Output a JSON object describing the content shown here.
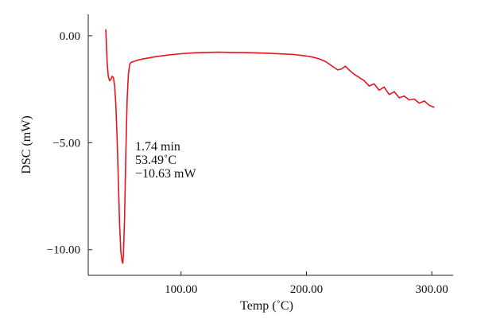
{
  "chart_data": {
    "type": "line",
    "xlabel": "Temp (˚C)",
    "ylabel": "DSC (mW)",
    "xlim": [
      26,
      317
    ],
    "ylim": [
      -11.2,
      1.0
    ],
    "x_ticks": [
      100,
      200,
      300
    ],
    "x_tick_labels": [
      "100.00",
      "200.00",
      "300.00"
    ],
    "y_ticks": [
      0,
      -5,
      -10
    ],
    "y_tick_labels": [
      "0.00",
      "−5.00",
      "−10.00"
    ],
    "grid": false,
    "legend": "none",
    "series": [
      {
        "color": "#e8141b",
        "x": [
          40,
          41,
          42,
          43,
          44,
          45,
          46,
          47,
          48,
          49,
          50,
          51,
          52,
          53,
          53.49,
          54,
          55,
          56,
          57,
          58,
          59,
          60,
          65,
          70,
          80,
          90,
          100,
          110,
          120,
          130,
          140,
          150,
          160,
          170,
          180,
          190,
          200,
          205,
          210,
          215,
          220,
          225,
          228,
          231,
          234,
          238,
          242,
          246,
          250,
          254,
          258,
          262,
          266,
          270,
          274,
          278,
          282,
          286,
          290,
          294,
          298,
          302
        ],
        "y": [
          0.3,
          -1.2,
          -1.9,
          -2.1,
          -2.05,
          -1.9,
          -1.95,
          -2.3,
          -3.2,
          -4.8,
          -6.8,
          -8.8,
          -10.1,
          -10.55,
          -10.63,
          -10.3,
          -8.5,
          -5.5,
          -3.0,
          -1.8,
          -1.35,
          -1.25,
          -1.15,
          -1.08,
          -0.98,
          -0.9,
          -0.84,
          -0.8,
          -0.78,
          -0.77,
          -0.78,
          -0.79,
          -0.8,
          -0.82,
          -0.85,
          -0.88,
          -0.95,
          -1.0,
          -1.08,
          -1.2,
          -1.4,
          -1.6,
          -1.55,
          -1.42,
          -1.6,
          -1.8,
          -1.95,
          -2.1,
          -2.35,
          -2.25,
          -2.55,
          -2.4,
          -2.75,
          -2.62,
          -2.9,
          -2.82,
          -3.0,
          -2.96,
          -3.15,
          -3.05,
          -3.25,
          -3.35
        ]
      }
    ],
    "annotation": {
      "lines": [
        "1.74 min",
        "53.49˚C",
        "−10.63 mW"
      ]
    }
  }
}
